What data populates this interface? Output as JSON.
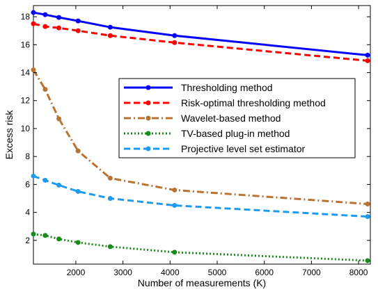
{
  "chart_data": {
    "type": "line",
    "xlabel": "Number of measurements (K)",
    "ylabel": "Excess risk",
    "xlim": [
      1100,
      8250
    ],
    "ylim": [
      0.3,
      18.8
    ],
    "xticks": [
      2000,
      3000,
      4000,
      5000,
      6000,
      7000,
      8000
    ],
    "yticks": [
      2,
      4,
      6,
      8,
      10,
      12,
      14,
      16,
      18
    ],
    "grid": false,
    "legend_position": "center-right",
    "x": [
      1100,
      1350,
      1640,
      2048,
      2730,
      4096,
      8192
    ],
    "series": [
      {
        "name": "Thresholding method",
        "color": "#0000ff",
        "dash": "solid",
        "values": [
          18.3,
          18.15,
          17.95,
          17.7,
          17.25,
          16.65,
          15.25
        ]
      },
      {
        "name": "Risk-optimal thresholding method",
        "color": "#ff0000",
        "dash": "dashed",
        "values": [
          17.5,
          17.3,
          17.2,
          17.0,
          16.65,
          16.15,
          14.85
        ]
      },
      {
        "name": "Wavelet-based method",
        "color": "#b87333",
        "dash": "dashdot",
        "values": [
          14.2,
          12.8,
          10.7,
          8.4,
          6.45,
          5.6,
          4.6
        ]
      },
      {
        "name": "TV-based plug-in method",
        "color": "#1a8a1a",
        "dash": "dotted",
        "values": [
          2.45,
          2.35,
          2.1,
          1.85,
          1.55,
          1.15,
          0.55
        ]
      },
      {
        "name": "Projective level set estimator",
        "color": "#1e9bf0",
        "dash": "dashed",
        "values": [
          6.6,
          6.3,
          5.95,
          5.5,
          5.0,
          4.5,
          3.7
        ]
      }
    ]
  }
}
